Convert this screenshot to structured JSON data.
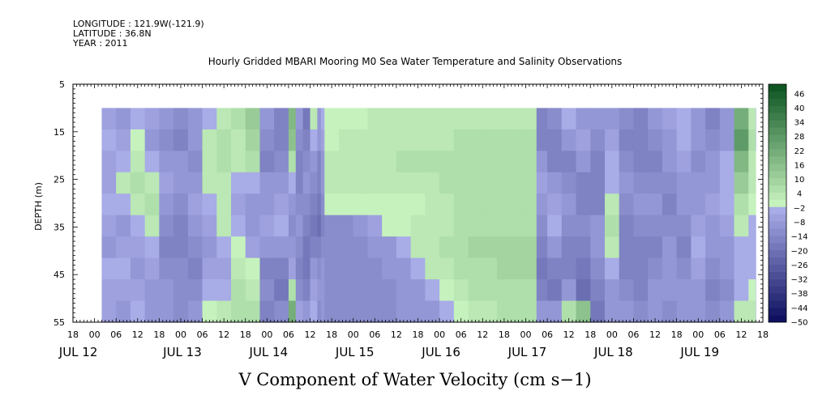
{
  "header": {
    "longitude": "LONGITUDE : 121.9W(-121.9)",
    "latitude": "LATITUDE : 36.8N",
    "year": "YEAR : 2011"
  },
  "chart_data": {
    "type": "heatmap",
    "title": "Hourly Gridded MBARI Mooring M0 Sea Water Temperature and Salinity Observations",
    "xlabel": "V Component of Water Velocity (cm s−1)",
    "ylabel": "DEPTH (m)",
    "y_ticks": [
      "5",
      "15",
      "25",
      "35",
      "45",
      "55"
    ],
    "hour_ticks": [
      "18",
      "00",
      "06",
      "12",
      "18",
      "00",
      "06",
      "12",
      "18",
      "00",
      "06",
      "12",
      "18",
      "00",
      "06",
      "12",
      "18",
      "00",
      "06",
      "12",
      "18",
      "00",
      "06",
      "12",
      "18",
      "00",
      "06",
      "12",
      "18",
      "00",
      "06",
      "12",
      "18"
    ],
    "date_labels": [
      "JUL 12",
      "JUL 13",
      "JUL 14",
      "JUL 15",
      "JUL 16",
      "JUL 17",
      "JUL 18",
      "JUL 19"
    ],
    "colorbar_labels": [
      "46",
      "40",
      "34",
      "28",
      "22",
      "16",
      "10",
      "4",
      "−2",
      "−8",
      "−14",
      "−20",
      "−26",
      "−32",
      "−38",
      "−44",
      "−50"
    ],
    "colorbar_range": [
      -50,
      50
    ],
    "colorbar_step": 3,
    "x_range_hours": [
      -6,
      186
    ],
    "y_range": [
      5,
      55
    ],
    "data_depth_range": [
      10,
      55
    ],
    "data_hour_range": [
      2,
      184
    ],
    "columns": [
      {
        "h": 2,
        "p": [
          -6,
          -4,
          -7,
          -5,
          -3,
          -6,
          -8,
          -4,
          -5,
          -7
        ]
      },
      {
        "h": 6,
        "p": [
          -8,
          -6,
          -3,
          2,
          -4,
          -9,
          -6,
          -3,
          -5,
          -8
        ]
      },
      {
        "h": 10,
        "p": [
          -4,
          0,
          3,
          5,
          4,
          -2,
          -5,
          -8,
          -6,
          -4
        ]
      },
      {
        "h": 14,
        "p": [
          -6,
          -8,
          -4,
          2,
          6,
          3,
          -3,
          -7,
          -10,
          -8
        ]
      },
      {
        "h": 18,
        "p": [
          -10,
          -12,
          -8,
          -6,
          -9,
          -12,
          -14,
          -11,
          -9,
          -10
        ]
      },
      {
        "h": 22,
        "p": [
          -12,
          -14,
          -10,
          -8,
          -11,
          -14,
          -16,
          -13,
          -12,
          -11
        ]
      },
      {
        "h": 26,
        "p": [
          -8,
          -10,
          -12,
          -9,
          -7,
          -10,
          -13,
          -15,
          -12,
          -9
        ]
      },
      {
        "h": 30,
        "p": [
          -3,
          2,
          4,
          3,
          -2,
          -6,
          -8,
          -5,
          -2,
          0
        ]
      },
      {
        "h": 34,
        "p": [
          2,
          6,
          5,
          3,
          4,
          2,
          -3,
          -6,
          -4,
          2
        ]
      },
      {
        "h": 38,
        "p": [
          6,
          4,
          2,
          -3,
          -6,
          -4,
          0,
          3,
          5,
          6
        ]
      },
      {
        "h": 42,
        "p": [
          12,
          10,
          5,
          -2,
          -8,
          -10,
          -5,
          0,
          4,
          7
        ]
      },
      {
        "h": 46,
        "p": [
          -10,
          -12,
          -14,
          -10,
          -8,
          -6,
          -10,
          -14,
          -12,
          -15
        ]
      },
      {
        "h": 50,
        "p": [
          -14,
          -16,
          -12,
          -8,
          -5,
          -3,
          -9,
          -15,
          -17,
          -13
        ]
      },
      {
        "h": 54,
        "p": [
          18,
          14,
          6,
          -2,
          -9,
          -12,
          -8,
          -5,
          7,
          22
        ]
      },
      {
        "h": 56,
        "p": [
          -8,
          -12,
          -14,
          -16,
          -12,
          -9,
          -11,
          -14,
          -12,
          -6
        ]
      },
      {
        "h": 58,
        "p": [
          -18,
          -15,
          -11,
          -8,
          -12,
          -16,
          -19,
          -17,
          -14,
          -10
        ]
      },
      {
        "h": 60,
        "p": [
          4,
          -2,
          -8,
          -12,
          -16,
          -18,
          -14,
          -10,
          -6,
          -3
        ]
      },
      {
        "h": 62,
        "p": [
          -8,
          -10,
          -14,
          -16,
          -18,
          -20,
          -16,
          -12,
          -9,
          -12
        ]
      },
      {
        "h": 63,
        "p": [
          -4,
          -6,
          -8,
          -10,
          -12,
          -14,
          -12,
          -10,
          -8,
          -9
        ]
      },
      {
        "h": 63.5,
        "p": [
          -4,
          -6,
          -8,
          -10,
          -12,
          -14,
          -12,
          -10,
          -8,
          -9
        ]
      },
      {
        "h": 64,
        "p": [
          1,
          1,
          2,
          2,
          1,
          -12,
          -12,
          -12,
          -12,
          -12
        ]
      },
      {
        "h": 68,
        "p": [
          1,
          2,
          2,
          2,
          1,
          -11,
          -12,
          -12,
          -12,
          -12
        ]
      },
      {
        "h": 72,
        "p": [
          1,
          2,
          3,
          2,
          0,
          -10,
          -11,
          -11,
          -11,
          -11
        ]
      },
      {
        "h": 76,
        "p": [
          2,
          3,
          3,
          2,
          0,
          -5,
          -10,
          -11,
          -11,
          -11
        ]
      },
      {
        "h": 80,
        "p": [
          2,
          4,
          4,
          2,
          0,
          -1,
          -9,
          -10,
          -11,
          -11
        ]
      },
      {
        "h": 84,
        "p": [
          2,
          4,
          5,
          2,
          1,
          1,
          -3,
          -8,
          -10,
          -10
        ]
      },
      {
        "h": 88,
        "p": [
          2,
          4,
          5,
          3,
          1,
          2,
          2,
          -3,
          -8,
          -10
        ]
      },
      {
        "h": 92,
        "p": [
          2,
          4,
          6,
          4,
          2,
          3,
          4,
          2,
          -2,
          -8
        ]
      },
      {
        "h": 96,
        "p": [
          2,
          4,
          6,
          5,
          3,
          4,
          5,
          3,
          0,
          -4
        ]
      },
      {
        "h": 100,
        "p": [
          3,
          5,
          6,
          6,
          5,
          6,
          7,
          5,
          2,
          1
        ]
      },
      {
        "h": 104,
        "p": [
          3,
          5,
          6,
          6,
          6,
          7,
          8,
          7,
          5,
          3
        ]
      },
      {
        "h": 108,
        "p": [
          3,
          5,
          6,
          6,
          6,
          7,
          8,
          7,
          6,
          4
        ]
      },
      {
        "h": 112,
        "p": [
          3,
          5,
          6,
          6,
          6,
          7,
          9,
          8,
          6,
          5
        ]
      },
      {
        "h": 116,
        "p": [
          3,
          5,
          6,
          6,
          6,
          7,
          9,
          8,
          6,
          5
        ]
      },
      {
        "h": 120,
        "p": [
          3,
          5,
          6,
          6,
          6,
          7,
          9,
          8,
          6,
          5
        ]
      },
      {
        "h": 123,
        "p": [
          -16,
          -14,
          -10,
          -6,
          -8,
          -12,
          -16,
          -18,
          -14,
          -10
        ]
      },
      {
        "h": 126,
        "p": [
          -12,
          -16,
          -14,
          -10,
          -6,
          -2,
          -8,
          -14,
          -18,
          -10
        ]
      },
      {
        "h": 130,
        "p": [
          -4,
          -10,
          -14,
          -12,
          -8,
          -12,
          -16,
          -14,
          -8,
          6
        ]
      },
      {
        "h": 134,
        "p": [
          -8,
          -6,
          -10,
          -14,
          -16,
          -12,
          -14,
          -18,
          -20,
          14
        ]
      },
      {
        "h": 138,
        "p": [
          -10,
          -12,
          -14,
          -16,
          -14,
          -10,
          -8,
          -12,
          -16,
          -18
        ]
      },
      {
        "h": 142,
        "p": [
          -8,
          -6,
          -4,
          -2,
          4,
          6,
          2,
          -4,
          -8,
          -10
        ]
      },
      {
        "h": 146,
        "p": [
          -12,
          -14,
          -12,
          -10,
          -12,
          -14,
          -16,
          -14,
          -12,
          -10
        ]
      },
      {
        "h": 150,
        "p": [
          -14,
          -16,
          -14,
          -12,
          -10,
          -12,
          -14,
          -16,
          -14,
          -12
        ]
      },
      {
        "h": 154,
        "p": [
          -8,
          -12,
          -14,
          -12,
          -10,
          -12,
          -14,
          -12,
          -10,
          -8
        ]
      },
      {
        "h": 158,
        "p": [
          -6,
          -8,
          -10,
          -12,
          -14,
          -12,
          -10,
          -8,
          -10,
          -12
        ]
      },
      {
        "h": 162,
        "p": [
          -2,
          -4,
          -6,
          -8,
          -10,
          -12,
          -14,
          -12,
          -10,
          -8
        ]
      },
      {
        "h": 166,
        "p": [
          -8,
          -10,
          -12,
          -10,
          -8,
          -6,
          -4,
          -6,
          -8,
          -10
        ]
      },
      {
        "h": 170,
        "p": [
          -14,
          -12,
          -10,
          -8,
          -6,
          -8,
          -10,
          -12,
          -14,
          -12
        ]
      },
      {
        "h": 174,
        "p": [
          -10,
          -8,
          -4,
          -2,
          -4,
          -6,
          -8,
          -10,
          -12,
          -10
        ]
      },
      {
        "h": 178,
        "p": [
          22,
          26,
          18,
          12,
          6,
          2,
          -2,
          -4,
          -2,
          2
        ]
      },
      {
        "h": 182,
        "p": [
          4,
          6,
          4,
          2,
          0,
          -2,
          -4,
          -2,
          0,
          4
        ]
      },
      {
        "h": 184,
        "p": [
          -4,
          -2,
          0,
          2,
          0,
          -2,
          -4,
          -6,
          -4,
          -2
        ]
      }
    ]
  }
}
